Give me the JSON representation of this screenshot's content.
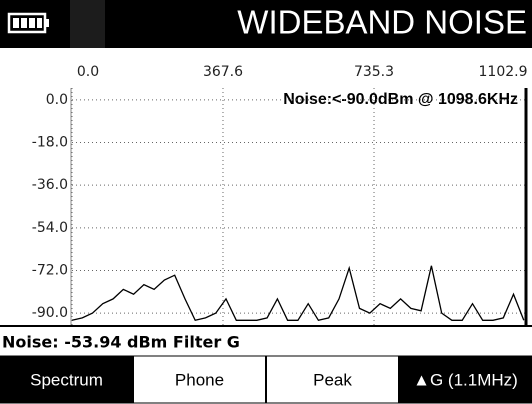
{
  "header": {
    "title": "WIDEBAND NOISE"
  },
  "chart_data": {
    "type": "line",
    "annotation": "Noise:<-90.0dBm @ 1098.6KHz",
    "x": [
      0,
      25,
      50,
      75,
      100,
      125,
      150,
      175,
      200,
      225,
      250,
      275,
      300,
      325,
      350,
      375,
      400,
      425,
      450,
      475,
      500,
      525,
      550,
      575,
      600,
      625,
      650,
      675,
      700,
      725,
      750,
      775,
      800,
      825,
      850,
      875,
      900,
      925,
      950,
      975,
      1000,
      1025,
      1050,
      1075,
      1100
    ],
    "values": [
      -93,
      -92,
      -90,
      -86,
      -84,
      -80,
      -82,
      -78,
      -80,
      -76,
      -74,
      -84,
      -93,
      -92,
      -90,
      -84,
      -93,
      -93,
      -93,
      -92,
      -84,
      -93,
      -93,
      -86,
      -93,
      -92,
      -84,
      -71,
      -88,
      -90,
      -86,
      -88,
      -84,
      -88,
      -89,
      -70,
      -90,
      -93,
      -93,
      -86,
      -93,
      -93,
      -92,
      -82,
      -93
    ],
    "color": "#000000",
    "xlim": [
      0,
      1102.9
    ],
    "xticks": [
      {
        "value": 0,
        "label": "0.0"
      },
      367.6,
      735.3,
      1102.9
    ],
    "ylim": [
      -95,
      5
    ],
    "yticks": [
      {
        "value": 0,
        "label": "0.0"
      },
      {
        "value": -18,
        "label": "-18.0"
      },
      {
        "value": -36,
        "label": "-36.0"
      },
      {
        "value": -54,
        "label": "-54.0"
      },
      {
        "value": -72,
        "label": "-72.0"
      },
      {
        "value": -90,
        "label": "-90.0"
      }
    ],
    "grid": true
  },
  "status": "Noise: -53.94 dBm Filter G",
  "buttons": [
    "Spectrum",
    "Phone",
    "Peak",
    "▲G (1.1MHz)"
  ]
}
